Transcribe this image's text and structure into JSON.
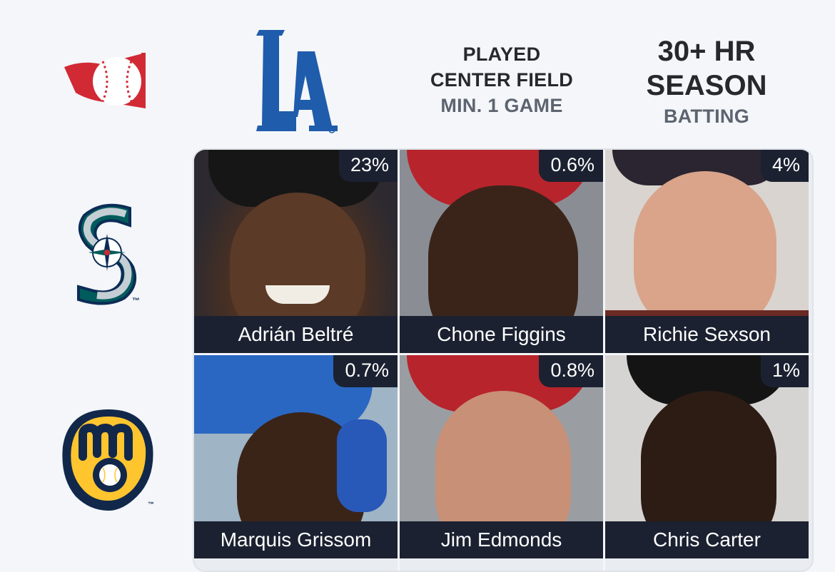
{
  "header": {
    "logos": {
      "corner": "mlb-red-baseball-logo",
      "col1": "dodgers-la-logo"
    },
    "col2": {
      "line1": "PLAYED",
      "line2": "CENTER FIELD",
      "line3": "MIN. 1 GAME"
    },
    "col3": {
      "line1": "30+ HR",
      "line2": "SEASON",
      "line3": "BATTING"
    }
  },
  "rows": [
    {
      "logo": "mariners-logo",
      "tm": "™"
    },
    {
      "logo": "brewers-glove-logo",
      "tm": "™"
    }
  ],
  "la_logo_text": "LA",
  "grid": [
    [
      {
        "name": "Adrián Beltré",
        "pct": "23%"
      },
      {
        "name": "Chone Figgins",
        "pct": "0.6%"
      },
      {
        "name": "Richie Sexson",
        "pct": "4%"
      }
    ],
    [
      {
        "name": "Marquis Grissom",
        "pct": "0.7%"
      },
      {
        "name": "Jim Edmonds",
        "pct": "0.8%"
      },
      {
        "name": "Chris Carter",
        "pct": "1%"
      }
    ]
  ],
  "colors": {
    "background": "#f4f6f9",
    "dodgers_blue": "#1f5cab",
    "mariners_navy": "#0c2c56",
    "mariners_teal": "#005c5c",
    "brewers_navy": "#12284b",
    "brewers_gold": "#ffc52f",
    "overlay": "#1b2130",
    "mlb_red": "#d12a35"
  }
}
